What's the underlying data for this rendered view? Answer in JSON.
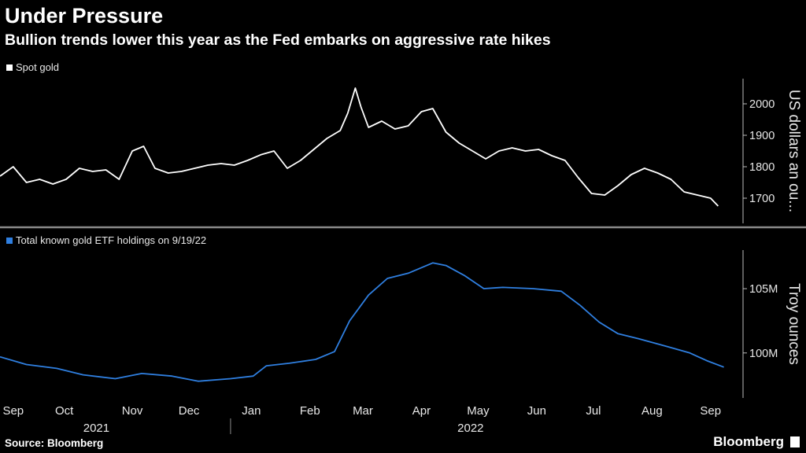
{
  "header": {
    "title": "Under Pressure",
    "subtitle": "Bullion trends lower this year as the Fed embarks on aggressive rate hikes"
  },
  "footer": {
    "source": "Source: Bloomberg",
    "brand": "Bloomberg"
  },
  "colors": {
    "background": "#000000",
    "gold_line": "#ffffff",
    "etf_line": "#2f7fe0",
    "axis": "#bdbdbd"
  },
  "chart_data": [
    {
      "type": "line",
      "legend": "Spot gold",
      "ylabel": "US dollars an ou...",
      "ylim": [
        1620,
        2080
      ],
      "yticks": [
        1700,
        1800,
        1900,
        2000
      ],
      "ytick_labels": [
        "1700",
        "1800",
        "1900",
        "2000"
      ],
      "xlim": [
        "2021-09-01",
        "2022-09-25"
      ],
      "grid": false,
      "series": [
        {
          "name": "Spot gold",
          "x": [
            "2021-09-01",
            "2021-09-08",
            "2021-09-15",
            "2021-09-22",
            "2021-09-29",
            "2021-10-06",
            "2021-10-13",
            "2021-10-20",
            "2021-10-27",
            "2021-11-03",
            "2021-11-10",
            "2021-11-16",
            "2021-11-22",
            "2021-11-29",
            "2021-12-06",
            "2021-12-13",
            "2021-12-20",
            "2021-12-27",
            "2022-01-03",
            "2022-01-10",
            "2022-01-17",
            "2022-01-24",
            "2022-01-31",
            "2022-02-07",
            "2022-02-14",
            "2022-02-21",
            "2022-02-28",
            "2022-03-04",
            "2022-03-08",
            "2022-03-11",
            "2022-03-15",
            "2022-03-22",
            "2022-03-29",
            "2022-04-05",
            "2022-04-12",
            "2022-04-18",
            "2022-04-25",
            "2022-05-02",
            "2022-05-09",
            "2022-05-16",
            "2022-05-23",
            "2022-05-30",
            "2022-06-06",
            "2022-06-13",
            "2022-06-20",
            "2022-06-27",
            "2022-07-04",
            "2022-07-11",
            "2022-07-18",
            "2022-07-25",
            "2022-08-01",
            "2022-08-08",
            "2022-08-15",
            "2022-08-22",
            "2022-08-29",
            "2022-09-05",
            "2022-09-12",
            "2022-09-16"
          ],
          "values": [
            1770,
            1800,
            1750,
            1760,
            1745,
            1760,
            1795,
            1785,
            1790,
            1760,
            1850,
            1865,
            1795,
            1780,
            1785,
            1795,
            1805,
            1810,
            1805,
            1820,
            1838,
            1850,
            1795,
            1820,
            1855,
            1890,
            1915,
            1970,
            2050,
            1990,
            1925,
            1945,
            1920,
            1930,
            1975,
            1985,
            1910,
            1875,
            1850,
            1825,
            1850,
            1860,
            1850,
            1855,
            1835,
            1820,
            1765,
            1715,
            1710,
            1740,
            1775,
            1795,
            1780,
            1760,
            1720,
            1710,
            1700,
            1675
          ]
        }
      ]
    },
    {
      "type": "line",
      "legend": "Total known gold ETF holdings on 9/19/22",
      "ylabel": "Troy ounces",
      "ylim": [
        96500,
        108000
      ],
      "yticks": [
        100000000,
        105000000
      ],
      "ytick_values": [
        100,
        105
      ],
      "ytick_labels": [
        "100M",
        "105M"
      ],
      "unit": "M",
      "xlim": [
        "2021-09-01",
        "2022-09-25"
      ],
      "grid": false,
      "series": [
        {
          "name": "Total known gold ETF holdings on 9/19/22",
          "x": [
            "2021-09-01",
            "2021-09-15",
            "2021-10-01",
            "2021-10-15",
            "2021-11-01",
            "2021-11-15",
            "2021-12-01",
            "2021-12-15",
            "2022-01-01",
            "2022-01-13",
            "2022-01-20",
            "2022-02-01",
            "2022-02-15",
            "2022-02-25",
            "2022-03-05",
            "2022-03-15",
            "2022-03-25",
            "2022-04-05",
            "2022-04-18",
            "2022-04-25",
            "2022-05-05",
            "2022-05-15",
            "2022-05-25",
            "2022-06-10",
            "2022-06-25",
            "2022-07-05",
            "2022-07-15",
            "2022-07-25",
            "2022-08-05",
            "2022-08-20",
            "2022-09-01",
            "2022-09-10",
            "2022-09-19"
          ],
          "values": [
            99.7,
            99.1,
            98.8,
            98.3,
            98.0,
            98.4,
            98.2,
            97.8,
            98.0,
            98.2,
            99.0,
            99.2,
            99.5,
            100.1,
            102.5,
            104.5,
            105.8,
            106.2,
            107.0,
            106.8,
            106.0,
            105.0,
            105.1,
            105.0,
            104.8,
            103.7,
            102.4,
            101.5,
            101.1,
            100.5,
            100.0,
            99.4,
            98.9
          ]
        }
      ]
    }
  ],
  "x_axis": {
    "months": [
      {
        "label": "Sep",
        "date": "2021-09-08"
      },
      {
        "label": "Oct",
        "date": "2021-10-05"
      },
      {
        "label": "Nov",
        "date": "2021-11-10"
      },
      {
        "label": "Dec",
        "date": "2021-12-10"
      },
      {
        "label": "Jan",
        "date": "2022-01-12"
      },
      {
        "label": "Feb",
        "date": "2022-02-12"
      },
      {
        "label": "Mar",
        "date": "2022-03-12"
      },
      {
        "label": "Apr",
        "date": "2022-04-12"
      },
      {
        "label": "May",
        "date": "2022-05-12"
      },
      {
        "label": "Jun",
        "date": "2022-06-12"
      },
      {
        "label": "Jul",
        "date": "2022-07-12"
      },
      {
        "label": "Aug",
        "date": "2022-08-12"
      },
      {
        "label": "Sep",
        "date": "2022-09-12"
      }
    ],
    "years": [
      {
        "label": "2021",
        "date": "2021-10-22"
      },
      {
        "label": "2022",
        "date": "2022-05-08"
      }
    ],
    "year_divider_date": "2022-01-01"
  }
}
